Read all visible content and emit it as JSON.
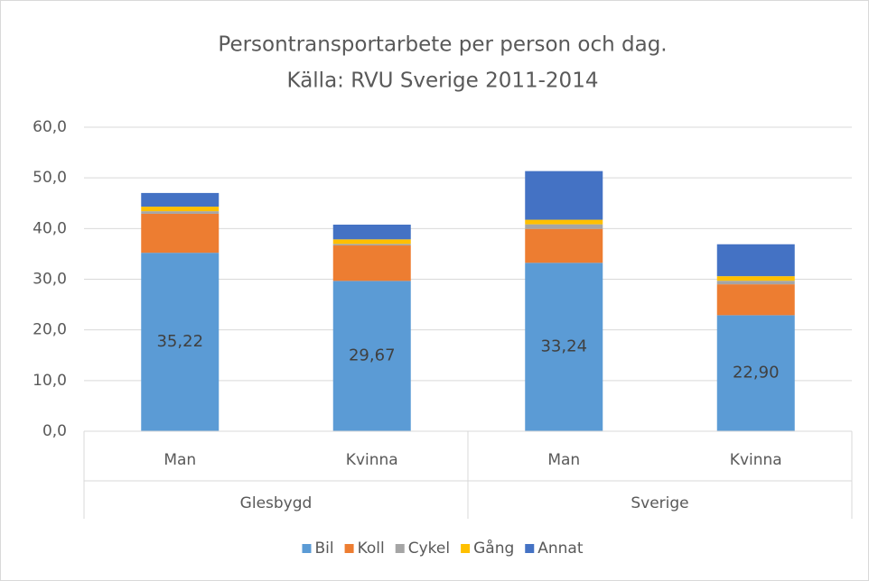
{
  "chart_data": {
    "type": "stacked-bar",
    "title": "Persontransportarbete per person och dag.",
    "subtitle": "Källa: RVU Sverige 2011-2014",
    "categories": [
      "Man",
      "Kvinna",
      "Man",
      "Kvinna"
    ],
    "groups": [
      "Glesbygd",
      "Sverige"
    ],
    "series": [
      {
        "name": "Bil",
        "color": "#5b9bd5",
        "values": [
          35.22,
          29.67,
          33.24,
          22.9
        ],
        "value_labels": [
          "35,22",
          "29,67",
          "33,24",
          "22,90"
        ]
      },
      {
        "name": "Koll",
        "color": "#ed7d31",
        "values": [
          7.7,
          7.0,
          6.7,
          6.1
        ]
      },
      {
        "name": "Cykel",
        "color": "#a5a5a5",
        "values": [
          0.5,
          0.3,
          0.9,
          0.7
        ]
      },
      {
        "name": "Gång",
        "color": "#ffc000",
        "values": [
          0.9,
          0.9,
          0.9,
          0.9
        ]
      },
      {
        "name": "Annat",
        "color": "#4472c4",
        "values": [
          2.7,
          2.9,
          9.6,
          6.3
        ]
      }
    ],
    "ylim": [
      0,
      60
    ],
    "yticks": [
      {
        "value": 0,
        "label": "0,0"
      },
      {
        "value": 10,
        "label": "10,0"
      },
      {
        "value": 20,
        "label": "20,0"
      },
      {
        "value": 30,
        "label": "30,0"
      },
      {
        "value": 40,
        "label": "40,0"
      },
      {
        "value": 50,
        "label": "50,0"
      },
      {
        "value": 60,
        "label": "60,0"
      }
    ],
    "grid": true,
    "legend": "bottom"
  }
}
